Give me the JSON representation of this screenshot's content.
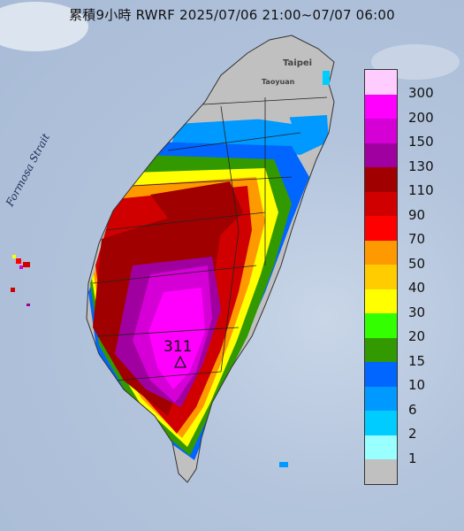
{
  "map": {
    "title": "累積9小時 RWRF 2025/07/06 21:00~07/07 06:00",
    "strait_label": "Formosa Strait",
    "place_labels": [
      "Taipei",
      "Taoyuan"
    ],
    "peak_value": "311",
    "peak_marker_icon": "triangle-icon"
  },
  "legend": {
    "unit_note": "",
    "bins": [
      {
        "label": "300",
        "color": "#ffccff"
      },
      {
        "label": "200",
        "color": "#ff00ff"
      },
      {
        "label": "150",
        "color": "#d500d5"
      },
      {
        "label": "130",
        "color": "#a000a0"
      },
      {
        "label": "110",
        "color": "#a00000"
      },
      {
        "label": "90",
        "color": "#d00000"
      },
      {
        "label": "70",
        "color": "#ff0000"
      },
      {
        "label": "50",
        "color": "#ff9900"
      },
      {
        "label": "40",
        "color": "#ffcc00"
      },
      {
        "label": "30",
        "color": "#ffff00"
      },
      {
        "label": "20",
        "color": "#33ff00"
      },
      {
        "label": "15",
        "color": "#339900"
      },
      {
        "label": "10",
        "color": "#0066ff"
      },
      {
        "label": "6",
        "color": "#0099ff"
      },
      {
        "label": "2",
        "color": "#00ccff"
      },
      {
        "label": "1",
        "color": "#99ffff"
      },
      {
        "label": "",
        "color": "#c0c0c0"
      }
    ]
  }
}
